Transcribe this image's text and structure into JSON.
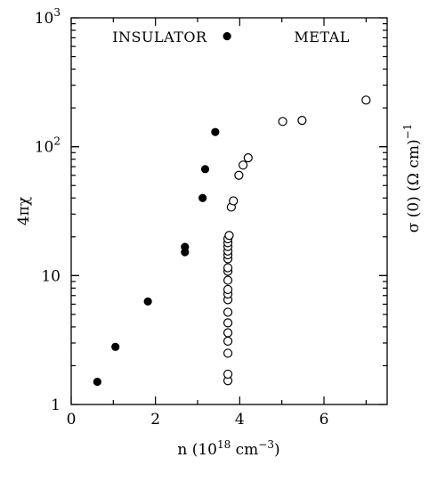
{
  "chart_data": {
    "type": "scatter",
    "title": "",
    "xlabel": {
      "base": "n (10",
      "exp1": "18",
      "mid": " cm",
      "exp2": "−3",
      "end": ")"
    },
    "ylabel_left": "4πχ",
    "ylabel_right": {
      "base": "σ (0)  (Ω cm)",
      "exp": "−1"
    },
    "xlim": [
      0,
      7.5
    ],
    "ylim": [
      1,
      1000
    ],
    "yscale": "log",
    "grid": false,
    "x_ticks": [
      {
        "value": 0,
        "label": "0"
      },
      {
        "value": 2,
        "label": "2"
      },
      {
        "value": 4,
        "label": "4"
      },
      {
        "value": 6,
        "label": "6"
      }
    ],
    "y_ticks": [
      {
        "value": 1,
        "label": "1"
      },
      {
        "value": 10,
        "label": "10"
      },
      {
        "value": 100,
        "label_base": "10",
        "label_exp": "2"
      },
      {
        "value": 1000,
        "label_base": "10",
        "label_exp": "3"
      }
    ],
    "annotations": [
      {
        "text": "INSULATOR",
        "x": 2.1,
        "y": 650
      },
      {
        "text": "METAL",
        "x": 5.95,
        "y": 650
      }
    ],
    "series": [
      {
        "marker": "filled-circle",
        "points": [
          [
            0.62,
            1.5
          ],
          [
            1.05,
            2.8
          ],
          [
            1.82,
            6.3
          ],
          [
            2.7,
            15.2
          ],
          [
            2.7,
            16.7
          ],
          [
            3.12,
            40
          ],
          [
            3.18,
            67
          ],
          [
            3.42,
            130
          ],
          [
            3.7,
            720
          ]
        ]
      },
      {
        "marker": "open-circle",
        "points": [
          [
            3.72,
            1.53
          ],
          [
            3.72,
            1.72
          ],
          [
            3.72,
            2.5
          ],
          [
            3.72,
            3.1
          ],
          [
            3.72,
            3.6
          ],
          [
            3.72,
            4.3
          ],
          [
            3.72,
            5.2
          ],
          [
            3.72,
            6.5
          ],
          [
            3.72,
            7.2
          ],
          [
            3.72,
            7.8
          ],
          [
            3.72,
            9.2
          ],
          [
            3.72,
            10.8
          ],
          [
            3.72,
            11.5
          ],
          [
            3.72,
            13.5
          ],
          [
            3.72,
            14.5
          ],
          [
            3.72,
            15.5
          ],
          [
            3.72,
            16.8
          ],
          [
            3.72,
            18
          ],
          [
            3.72,
            19.3
          ],
          [
            3.75,
            20.5
          ],
          [
            3.8,
            34
          ],
          [
            3.85,
            38
          ],
          [
            3.98,
            60
          ],
          [
            4.08,
            72
          ],
          [
            4.2,
            82
          ],
          [
            5.02,
            157
          ],
          [
            5.48,
            160
          ],
          [
            7.0,
            230
          ]
        ]
      }
    ]
  }
}
